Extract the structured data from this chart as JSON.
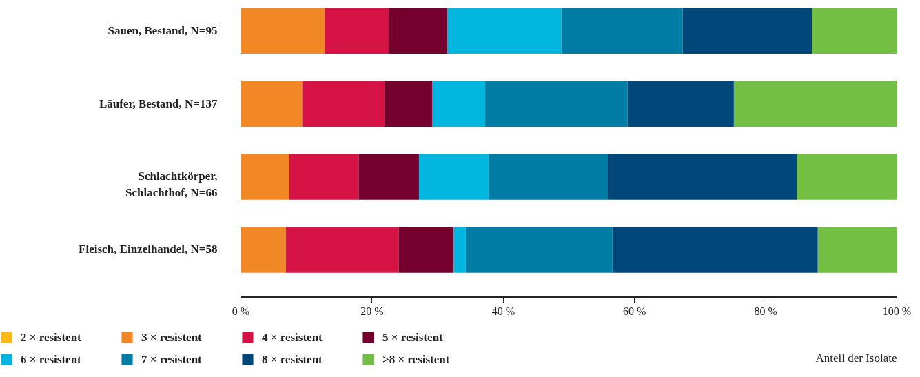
{
  "chart_data": {
    "type": "bar",
    "orientation": "horizontal",
    "stacked": true,
    "xlabel": "Anteil der Isolate",
    "categories": [
      "Sauen, Bestand, N=95",
      "Läufer, Bestand, N=137",
      "Schlachtkörper,\nSchlachthof, N=66",
      "Fleisch, Einzelhandel, N=58"
    ],
    "series": [
      {
        "name": "2 × resistent",
        "color": "#fbb913",
        "values": [
          0,
          0,
          0,
          0
        ]
      },
      {
        "name": "3 × resistent",
        "color": "#f28726",
        "values": [
          12.8,
          9.4,
          7.4,
          6.9
        ]
      },
      {
        "name": "4 × resistent",
        "color": "#d51344",
        "values": [
          9.7,
          12.6,
          10.6,
          17.2
        ]
      },
      {
        "name": "5 × resistent",
        "color": "#76002d",
        "values": [
          9.0,
          7.2,
          9.2,
          8.4
        ]
      },
      {
        "name": "6 × resistent",
        "color": "#00b5de",
        "values": [
          17.4,
          8.1,
          10.6,
          1.8
        ]
      },
      {
        "name": "7 × resistent",
        "color": "#007ca5",
        "values": [
          18.5,
          21.7,
          18.1,
          22.4
        ]
      },
      {
        "name": "8 × resistent",
        "color": "#00477a",
        "values": [
          19.7,
          16.2,
          28.9,
          31.3
        ]
      },
      {
        "name": ">8 × resistent",
        "color": "#72bf44",
        "values": [
          12.9,
          24.8,
          15.2,
          12.0
        ]
      }
    ],
    "xlim": [
      0,
      100
    ],
    "xticks": [
      {
        "value": 0,
        "label": "0 %"
      },
      {
        "value": 20,
        "label": "20 %"
      },
      {
        "value": 40,
        "label": "40 %"
      },
      {
        "value": 60,
        "label": "60 %"
      },
      {
        "value": 80,
        "label": "80 %"
      },
      {
        "value": 100,
        "label": "100 %"
      }
    ],
    "grid": false,
    "legend": "bottom left"
  }
}
